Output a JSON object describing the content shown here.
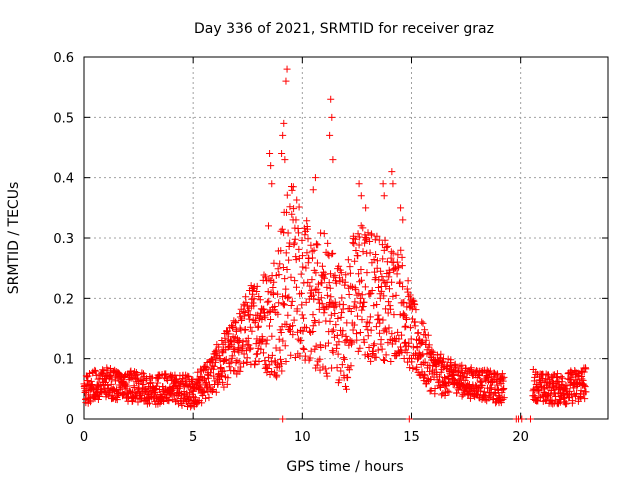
{
  "chart_data": {
    "type": "scatter",
    "title": "Day 336 of 2021, SRMTID for receiver graz",
    "xlabel": "GPS time / hours",
    "ylabel": "SRMTID / TECUs",
    "xlim": [
      0,
      24
    ],
    "ylim": [
      0,
      0.6
    ],
    "x_ticks": [
      0,
      5,
      10,
      15,
      20
    ],
    "x_tick_labels": [
      "0",
      "5",
      "10",
      "15",
      "20"
    ],
    "y_ticks": [
      0,
      0.1,
      0.2,
      0.3,
      0.4,
      0.5,
      0.6
    ],
    "y_tick_labels": [
      "0",
      "0.1",
      "0.2",
      "0.3",
      "0.4",
      "0.5",
      "0.6"
    ],
    "grid": true,
    "marker": "+",
    "color": "#ff0000",
    "envelope": {
      "x": [
        0,
        1,
        2,
        3,
        4,
        5,
        5.5,
        6,
        6.5,
        7,
        7.5,
        8,
        8.5,
        9,
        9.5,
        10,
        10.5,
        11,
        11.5,
        12,
        12.5,
        13,
        13.5,
        14,
        14.5,
        15,
        15.5,
        16,
        16.5,
        17,
        17.5,
        18,
        18.5,
        19,
        20.5,
        21,
        22,
        23
      ],
      "y": [
        0.05,
        0.06,
        0.055,
        0.05,
        0.05,
        0.045,
        0.06,
        0.08,
        0.1,
        0.12,
        0.15,
        0.17,
        0.16,
        0.2,
        0.25,
        0.23,
        0.18,
        0.2,
        0.17,
        0.15,
        0.22,
        0.2,
        0.21,
        0.19,
        0.2,
        0.14,
        0.11,
        0.08,
        0.07,
        0.07,
        0.06,
        0.06,
        0.055,
        0.05,
        0.06,
        0.05,
        0.05,
        0.06
      ],
      "spread": [
        0.02,
        0.02,
        0.02,
        0.02,
        0.02,
        0.02,
        0.025,
        0.03,
        0.035,
        0.04,
        0.05,
        0.06,
        0.07,
        0.1,
        0.12,
        0.1,
        0.08,
        0.1,
        0.08,
        0.08,
        0.09,
        0.09,
        0.08,
        0.08,
        0.07,
        0.05,
        0.04,
        0.03,
        0.025,
        0.02,
        0.02,
        0.02,
        0.02,
        0.02,
        0.02,
        0.02,
        0.02,
        0.025
      ]
    },
    "peaks": [
      {
        "x": 9.3,
        "y": 0.58
      },
      {
        "x": 9.25,
        "y": 0.56
      },
      {
        "x": 9.15,
        "y": 0.49
      },
      {
        "x": 9.1,
        "y": 0.47
      },
      {
        "x": 9.05,
        "y": 0.44
      },
      {
        "x": 8.5,
        "y": 0.44
      },
      {
        "x": 8.55,
        "y": 0.42
      },
      {
        "x": 9.2,
        "y": 0.43
      },
      {
        "x": 11.3,
        "y": 0.53
      },
      {
        "x": 11.35,
        "y": 0.5
      },
      {
        "x": 11.25,
        "y": 0.47
      },
      {
        "x": 11.4,
        "y": 0.43
      },
      {
        "x": 10.6,
        "y": 0.4
      },
      {
        "x": 10.5,
        "y": 0.38
      },
      {
        "x": 8.6,
        "y": 0.39
      },
      {
        "x": 14.1,
        "y": 0.41
      },
      {
        "x": 14.15,
        "y": 0.39
      },
      {
        "x": 12.6,
        "y": 0.39
      },
      {
        "x": 12.7,
        "y": 0.37
      },
      {
        "x": 13.7,
        "y": 0.39
      },
      {
        "x": 13.75,
        "y": 0.37
      },
      {
        "x": 8.45,
        "y": 0.32
      },
      {
        "x": 12.9,
        "y": 0.35
      },
      {
        "x": 14.5,
        "y": 0.35
      },
      {
        "x": 14.6,
        "y": 0.33
      }
    ],
    "zero_markers": [
      9.1,
      14.9,
      19.8,
      19.9,
      20.05,
      20.45
    ]
  }
}
